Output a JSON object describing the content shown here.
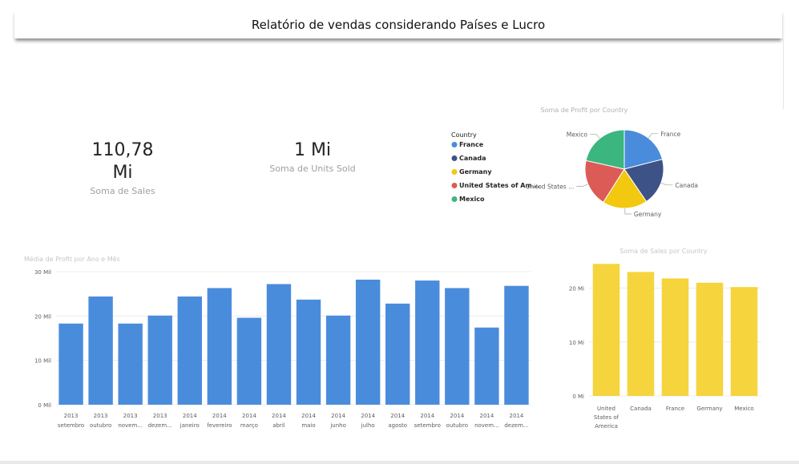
{
  "header": {
    "title": "Relatório de vendas considerando Países e Lucro"
  },
  "cards": [
    {
      "value": "110,78 Mi",
      "label": "Soma de Sales"
    },
    {
      "value": "1 Mi",
      "label": "Soma de Units Sold"
    }
  ],
  "chart_data": [
    {
      "type": "pie",
      "title": "Soma de Profit por Country",
      "legend_title": "Country",
      "legend_position": "left",
      "labels": [
        "France",
        "Canada",
        "Germany",
        "United States of America",
        "Mexico"
      ],
      "legend_labels": [
        "France",
        "Canada",
        "Germany",
        "United States of Am...",
        "Mexico"
      ],
      "slice_labels": [
        "France",
        "Canada",
        "Germany",
        "United States ...",
        "Mexico"
      ],
      "values": [
        21.0,
        19.5,
        18.5,
        19.5,
        21.5
      ],
      "colors": [
        "#4a8cdc",
        "#3d5286",
        "#f2c811",
        "#dd5b57",
        "#3bb67e"
      ]
    },
    {
      "type": "bar",
      "title": "Média de Profit por Ano e Mês",
      "categories": [
        [
          "2013",
          "setembro"
        ],
        [
          "2013",
          "outubro"
        ],
        [
          "2013",
          "novem..."
        ],
        [
          "2013",
          "dezem..."
        ],
        [
          "2014",
          "janeiro"
        ],
        [
          "2014",
          "fevereiro"
        ],
        [
          "2014",
          "março"
        ],
        [
          "2014",
          "abril"
        ],
        [
          "2014",
          "maio"
        ],
        [
          "2014",
          "junho"
        ],
        [
          "2014",
          "julho"
        ],
        [
          "2014",
          "agosto"
        ],
        [
          "2014",
          "setembro"
        ],
        [
          "2014",
          "outubro"
        ],
        [
          "2014",
          "novem..."
        ],
        [
          "2014",
          "dezem..."
        ]
      ],
      "values": [
        18.3,
        24.4,
        18.3,
        20.1,
        24.4,
        26.3,
        19.6,
        27.2,
        23.7,
        20.1,
        28.2,
        22.8,
        28.0,
        26.3,
        17.4,
        26.8
      ],
      "ylim": [
        0,
        30
      ],
      "yticks": [
        "0 Mil",
        "10 Mil",
        "20 Mil",
        "30 Mil"
      ],
      "color": "#4a8cdc",
      "grid": true
    },
    {
      "type": "bar",
      "title": "Soma de Sales por Country",
      "categories": [
        [
          "United",
          "States of",
          "America"
        ],
        [
          "Canada"
        ],
        [
          "France"
        ],
        [
          "Germany"
        ],
        [
          "Mexico"
        ]
      ],
      "values": [
        24.5,
        23.0,
        21.8,
        21.0,
        20.2
      ],
      "ylim": [
        0,
        23.5
      ],
      "yticks": [
        "0 Mi",
        "10 Mi",
        "20 Mi"
      ],
      "color": "#f6d43d",
      "grid": true
    }
  ]
}
